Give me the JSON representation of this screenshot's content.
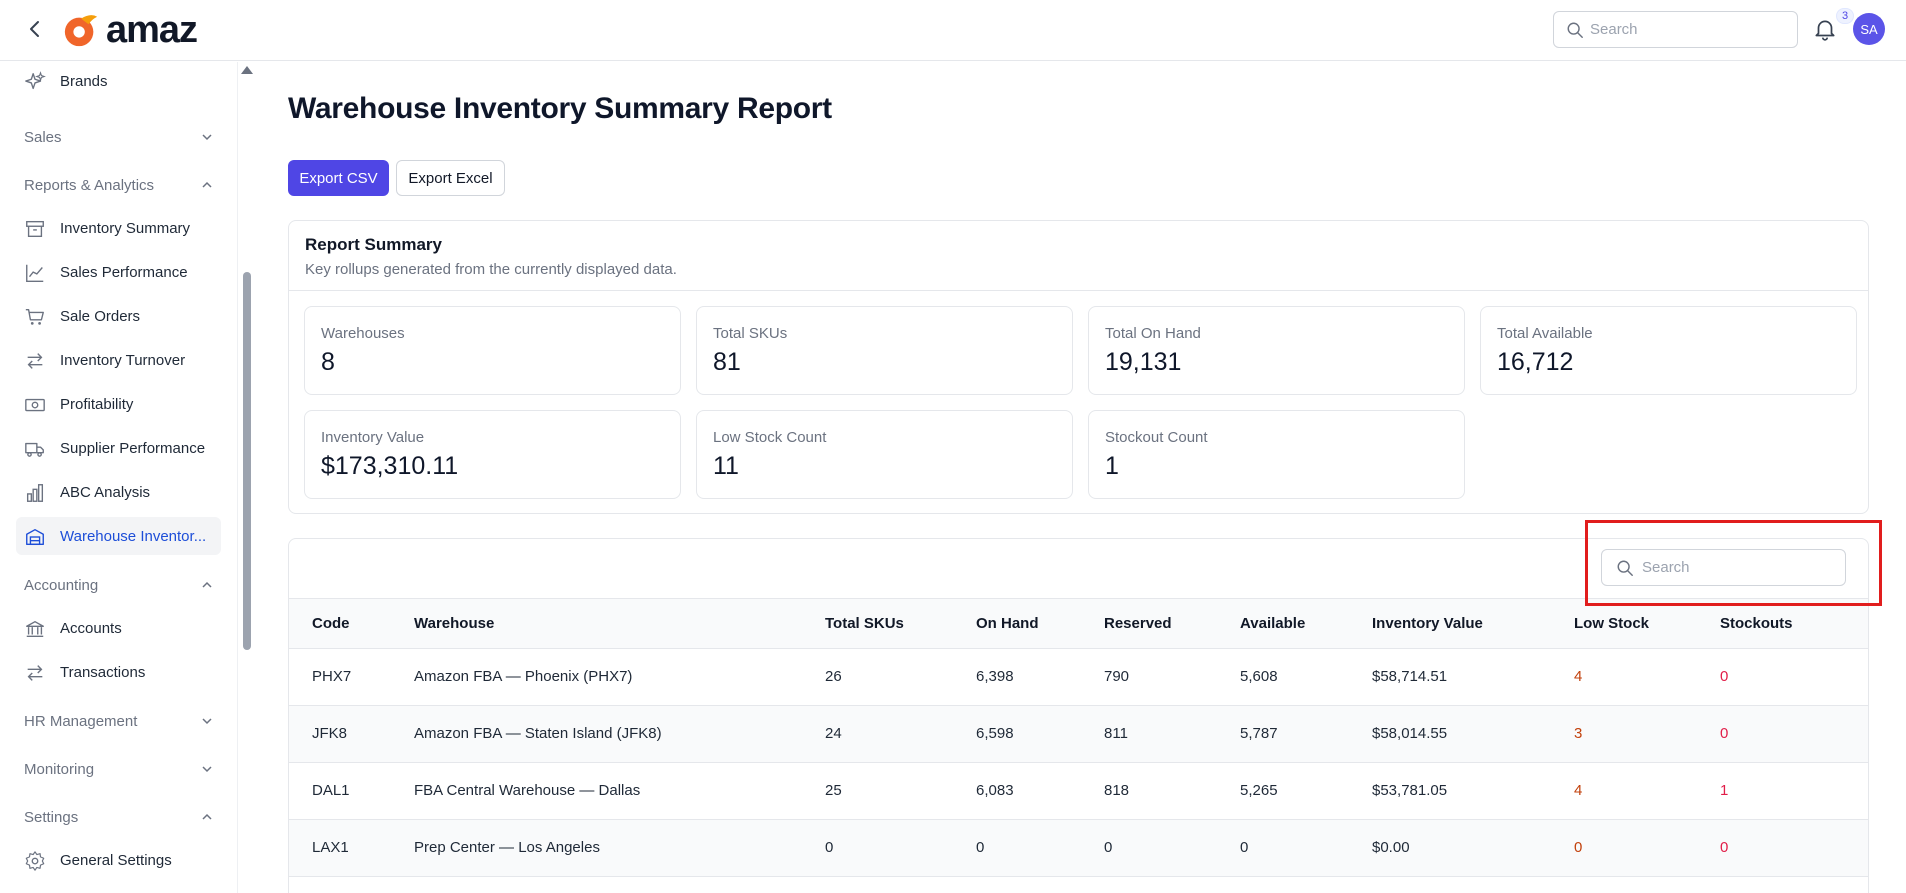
{
  "app": {
    "logo_text": "amaz"
  },
  "header": {
    "search_placeholder": "Search",
    "notification_count": "3",
    "avatar_initials": "SA"
  },
  "sidebar": {
    "items": [
      {
        "label": "Brands",
        "icon": "sparkles-icon"
      },
      {
        "label": "Sales",
        "type": "section",
        "expanded": false
      },
      {
        "label": "Reports & Analytics",
        "type": "section",
        "expanded": true
      },
      {
        "label": "Inventory Summary",
        "icon": "archive-icon"
      },
      {
        "label": "Sales Performance",
        "icon": "chart-line-icon"
      },
      {
        "label": "Sale Orders",
        "icon": "cart-icon"
      },
      {
        "label": "Inventory Turnover",
        "icon": "swap-icon"
      },
      {
        "label": "Profitability",
        "icon": "banknote-icon"
      },
      {
        "label": "Supplier Performance",
        "icon": "truck-icon"
      },
      {
        "label": "ABC Analysis",
        "icon": "bar-chart-icon"
      },
      {
        "label": "Warehouse Inventor...",
        "icon": "warehouse-icon",
        "active": true
      },
      {
        "label": "Accounting",
        "type": "section",
        "expanded": true
      },
      {
        "label": "Accounts",
        "icon": "bank-icon"
      },
      {
        "label": "Transactions",
        "icon": "swap-icon"
      },
      {
        "label": "HR Management",
        "type": "section",
        "expanded": false
      },
      {
        "label": "Monitoring",
        "type": "section",
        "expanded": false
      },
      {
        "label": "Settings",
        "type": "section",
        "expanded": true
      },
      {
        "label": "General Settings",
        "icon": "gear-icon"
      }
    ]
  },
  "main": {
    "title": "Warehouse Inventory Summary Report",
    "export_csv": "Export CSV",
    "export_excel": "Export Excel",
    "summary": {
      "title": "Report Summary",
      "subtitle": "Key rollups generated from the currently displayed data.",
      "stats": [
        {
          "label": "Warehouses",
          "value": "8"
        },
        {
          "label": "Total SKUs",
          "value": "81"
        },
        {
          "label": "Total On Hand",
          "value": "19,131"
        },
        {
          "label": "Total Available",
          "value": "16,712"
        },
        {
          "label": "Inventory Value",
          "value": "$173,310.11"
        },
        {
          "label": "Low Stock Count",
          "value": "11"
        },
        {
          "label": "Stockout Count",
          "value": "1"
        }
      ]
    },
    "table": {
      "search_placeholder": "Search",
      "columns": [
        "Code",
        "Warehouse",
        "Total SKUs",
        "On Hand",
        "Reserved",
        "Available",
        "Inventory Value",
        "Low Stock",
        "Stockouts"
      ],
      "rows": [
        [
          "PHX7",
          "Amazon FBA — Phoenix (PHX7)",
          "26",
          "6,398",
          "790",
          "5,608",
          "$58,714.51",
          "4",
          "0"
        ],
        [
          "JFK8",
          "Amazon FBA — Staten Island (JFK8)",
          "24",
          "6,598",
          "811",
          "5,787",
          "$58,014.55",
          "3",
          "0"
        ],
        [
          "DAL1",
          "FBA Central Warehouse — Dallas",
          "25",
          "6,083",
          "818",
          "5,265",
          "$53,781.05",
          "4",
          "1"
        ],
        [
          "LAX1",
          "Prep Center — Los Angeles",
          "0",
          "0",
          "0",
          "0",
          "$0.00",
          "0",
          "0"
        ]
      ]
    }
  },
  "colors": {
    "accent": "#4f46e5",
    "active_nav": "#1d4ed8",
    "low_stock": "#c2410c",
    "stockout": "#e11d48",
    "highlight": "#e11d1d"
  }
}
